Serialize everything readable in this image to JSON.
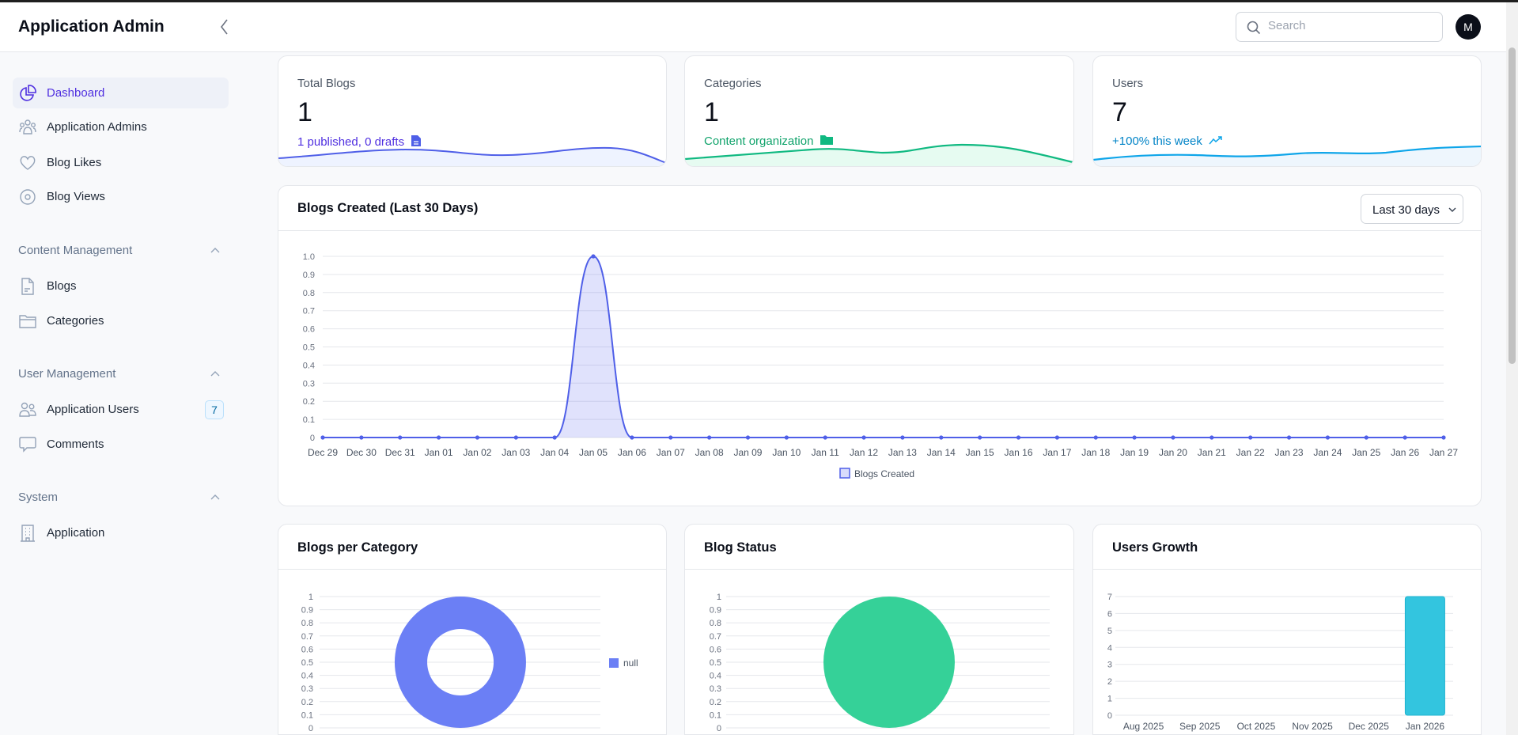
{
  "header": {
    "title": "Application Admin",
    "search_placeholder": "Search",
    "avatar_initial": "M"
  },
  "sidebar": {
    "items": [
      {
        "label": "Dashboard",
        "icon": "pie-chart-icon",
        "active": true
      },
      {
        "label": "Application Admins",
        "icon": "users-group-icon"
      },
      {
        "label": "Blog Likes",
        "icon": "heart-icon"
      },
      {
        "label": "Blog Views",
        "icon": "eye-icon"
      }
    ],
    "sections": [
      {
        "title": "Content Management",
        "items": [
          {
            "label": "Blogs",
            "icon": "document-icon"
          },
          {
            "label": "Categories",
            "icon": "folder-icon"
          }
        ]
      },
      {
        "title": "User Management",
        "items": [
          {
            "label": "Application Users",
            "icon": "users-icon",
            "badge": "7"
          },
          {
            "label": "Comments",
            "icon": "comment-icon"
          }
        ]
      },
      {
        "title": "System",
        "items": [
          {
            "label": "Application",
            "icon": "building-icon"
          }
        ]
      }
    ]
  },
  "stats": [
    {
      "label": "Total Blogs",
      "value": "1",
      "sub": "1 published, 0 drafts",
      "color": "#4f2fe0",
      "spark": "#4f5fe8"
    },
    {
      "label": "Categories",
      "value": "1",
      "sub": "Content organization",
      "color": "#10a36b",
      "spark": "#10b981"
    },
    {
      "label": "Users",
      "value": "7",
      "sub": "+100% this week",
      "color": "#0284c7",
      "spark": "#0ea5e9"
    }
  ],
  "blogs_chart": {
    "title": "Blogs Created (Last 30 Days)",
    "range": "Last 30 days"
  },
  "bottom": {
    "category_title": "Blogs per Category",
    "status_title": "Blog Status",
    "growth_title": "Users Growth"
  },
  "chart_data": [
    {
      "type": "area",
      "title": "Blogs Created (Last 30 Days)",
      "x": [
        "Dec 29",
        "Dec 30",
        "Dec 31",
        "Jan 01",
        "Jan 02",
        "Jan 03",
        "Jan 04",
        "Jan 05",
        "Jan 06",
        "Jan 07",
        "Jan 08",
        "Jan 09",
        "Jan 10",
        "Jan 11",
        "Jan 12",
        "Jan 13",
        "Jan 14",
        "Jan 15",
        "Jan 16",
        "Jan 17",
        "Jan 18",
        "Jan 19",
        "Jan 20",
        "Jan 21",
        "Jan 22",
        "Jan 23",
        "Jan 24",
        "Jan 25",
        "Jan 26",
        "Jan 27"
      ],
      "series": [
        {
          "name": "Blogs Created",
          "values": [
            0,
            0,
            0,
            0,
            0,
            0,
            0,
            1,
            0,
            0,
            0,
            0,
            0,
            0,
            0,
            0,
            0,
            0,
            0,
            0,
            0,
            0,
            0,
            0,
            0,
            0,
            0,
            0,
            0,
            0
          ],
          "color": "#4f5fe8"
        }
      ],
      "yticks": [
        "0",
        "0.1",
        "0.2",
        "0.3",
        "0.4",
        "0.5",
        "0.6",
        "0.7",
        "0.8",
        "0.9",
        "1.0"
      ],
      "ylim": [
        0,
        1
      ],
      "grid": true,
      "legend": "bottom"
    },
    {
      "type": "pie",
      "title": "Blogs per Category",
      "donut": true,
      "categories": [
        "null"
      ],
      "values": [
        1
      ],
      "color": "#6b7ff5",
      "yticks": [
        "0",
        "0.1",
        "0.2",
        "0.3",
        "0.4",
        "0.5",
        "0.6",
        "0.7",
        "0.8",
        "0.9",
        "1"
      ],
      "legend": "right"
    },
    {
      "type": "pie",
      "title": "Blog Status",
      "values": [
        1
      ],
      "color": "#2ecf95",
      "yticks": [
        "0",
        "0.1",
        "0.2",
        "0.3",
        "0.4",
        "0.5",
        "0.6",
        "0.7",
        "0.8",
        "0.9",
        "1"
      ]
    },
    {
      "type": "bar",
      "title": "Users Growth",
      "categories": [
        "Aug 2025",
        "Sep 2025",
        "Oct 2025",
        "Nov 2025",
        "Dec 2025",
        "Jan 2026"
      ],
      "values": [
        0,
        0,
        0,
        0,
        0,
        7
      ],
      "color": "#33c5df",
      "yticks": [
        "0",
        "1",
        "2",
        "3",
        "4",
        "5",
        "6",
        "7"
      ],
      "ylim": [
        0,
        7
      ]
    }
  ]
}
